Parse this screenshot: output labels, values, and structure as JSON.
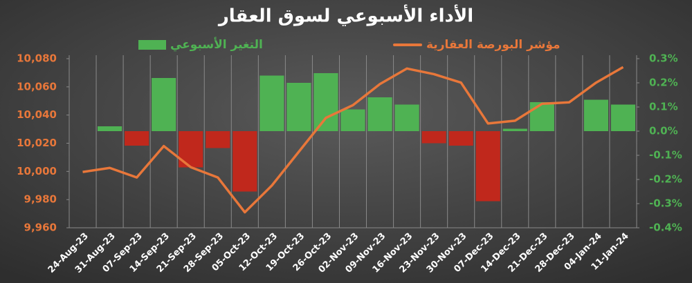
{
  "chart_data": {
    "type": "bar-line",
    "title": "الأداء الأسبوعي لسوق العقار",
    "categories": [
      "24-Aug-23",
      "31-Aug-23",
      "07-Sep-23",
      "14-Sep-23",
      "21-Sep-23",
      "28-Sep-23",
      "05-Oct-23",
      "12-Oct-23",
      "19-Oct-23",
      "26-Oct-23",
      "02-Nov-23",
      "09-Nov-23",
      "16-Nov-23",
      "23-Nov-23",
      "30-Nov-23",
      "07-Dec-23",
      "14-Dec-23",
      "21-Dec-23",
      "28-Dec-23",
      "04-Jan-24",
      "11-Jan-24"
    ],
    "series": [
      {
        "name": "التغير الأسبوعي",
        "type": "bar",
        "axis": "y2",
        "color": "#4fb253",
        "negative_color": "#c0281c",
        "values": [
          0,
          0.02,
          -0.06,
          0.22,
          -0.15,
          -0.07,
          -0.25,
          0.23,
          0.2,
          0.24,
          0.09,
          0.14,
          0.11,
          -0.05,
          -0.06,
          -0.29,
          0.01,
          0.12,
          0.0,
          0.13,
          0.11
        ]
      },
      {
        "name": "مؤشر البورصة العقارية",
        "type": "line",
        "axis": "y",
        "color": "#e8773a",
        "values": [
          9999.6,
          10002.5,
          9995.7,
          10018,
          10003,
          9995.7,
          9971,
          9990,
          10014,
          10038,
          10047,
          10062,
          10073,
          10069,
          10063,
          10034,
          10036,
          10048,
          10049,
          10063,
          10074
        ]
      }
    ],
    "ylim": [
      9960,
      10080
    ],
    "yticks": [
      {
        "value": 9960,
        "label": "9,960"
      },
      {
        "value": 9980,
        "label": "9,980"
      },
      {
        "value": 10000,
        "label": "10,000"
      },
      {
        "value": 10020,
        "label": "10,020"
      },
      {
        "value": 10040,
        "label": "10,040"
      },
      {
        "value": 10060,
        "label": "10,060"
      },
      {
        "value": 10080,
        "label": "10,080"
      }
    ],
    "y2lim": [
      -0.4,
      0.3
    ],
    "y2ticks": [
      {
        "value": -0.4,
        "label": "-0.4%"
      },
      {
        "value": -0.3,
        "label": "-0.3%"
      },
      {
        "value": -0.2,
        "label": "-0.2%"
      },
      {
        "value": -0.1,
        "label": "-0.1%"
      },
      {
        "value": 0,
        "label": "0.0%"
      },
      {
        "value": 0.1,
        "label": "0.1%"
      },
      {
        "value": 0.2,
        "label": "0.2%"
      },
      {
        "value": 0.3,
        "label": "0.3%"
      }
    ]
  }
}
